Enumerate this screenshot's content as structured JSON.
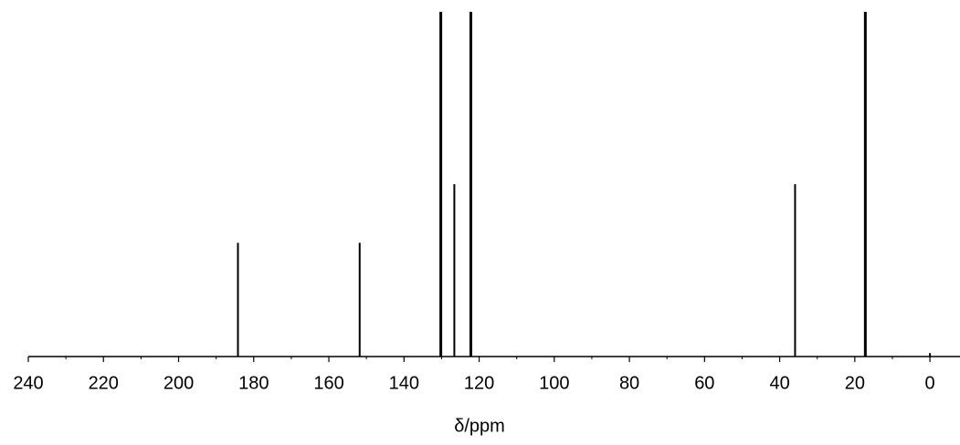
{
  "chart_data": {
    "type": "stem",
    "xlabel": "δ/ppm",
    "x": [
      184.2,
      151.8,
      130.2,
      126.6,
      122.2,
      35.9,
      17.2,
      0
    ],
    "values": [
      0.33,
      0.33,
      1.0,
      0.5,
      1.0,
      0.5,
      1.0,
      0.01
    ],
    "color": "#000000",
    "xlim": [
      240,
      -8
    ],
    "ylim": [
      0,
      1
    ],
    "xticks": [
      240,
      220,
      200,
      180,
      160,
      140,
      120,
      100,
      80,
      60,
      40,
      20,
      0
    ],
    "xminorticks": [
      230,
      210,
      190,
      170,
      150,
      130,
      110,
      90,
      70,
      50,
      30,
      10
    ]
  }
}
